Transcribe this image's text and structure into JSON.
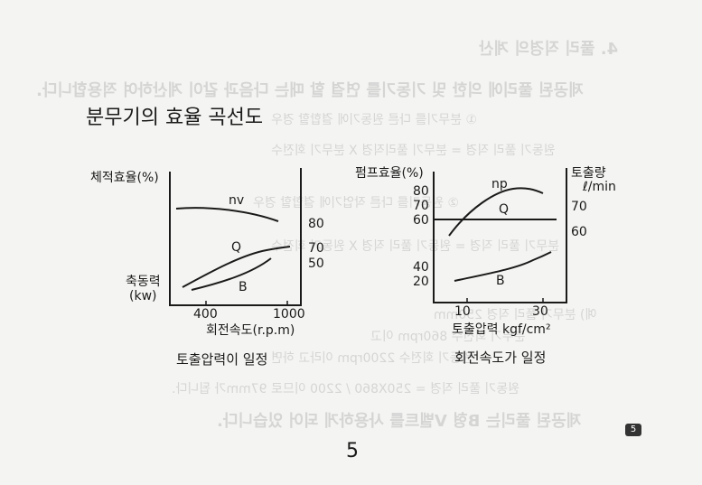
{
  "page": {
    "title": "분무기의 효율 곡선도",
    "page_number": "5",
    "badge": "5"
  },
  "chart_left": {
    "ylabel_top": "체적효율(%)",
    "ylabel_left_line1": "축동력",
    "ylabel_left_line2": "(kw)",
    "xlabel": "회전속도(r.p.m)",
    "x_ticks": [
      "400",
      "1000"
    ],
    "right_ticks": [
      "80",
      "70",
      "50"
    ],
    "curve_labels": {
      "nv": "nv",
      "Q": "Q",
      "B": "B"
    },
    "caption": "토출압력이 일정"
  },
  "chart_right": {
    "ylabel_top": "펌프효율(%)",
    "left_ticks": [
      "80",
      "70",
      "60",
      "40",
      "20"
    ],
    "ylabel_right_line1": "토출량",
    "ylabel_right_line2": "ℓ/min",
    "right_ticks": [
      "70",
      "60"
    ],
    "xlabel": "토출압력 kgf/cm²",
    "x_ticks": [
      "10",
      "30"
    ],
    "curve_labels": {
      "np": "np",
      "Q": "Q",
      "B": "B"
    },
    "caption": "회전속도가 일정"
  }
}
